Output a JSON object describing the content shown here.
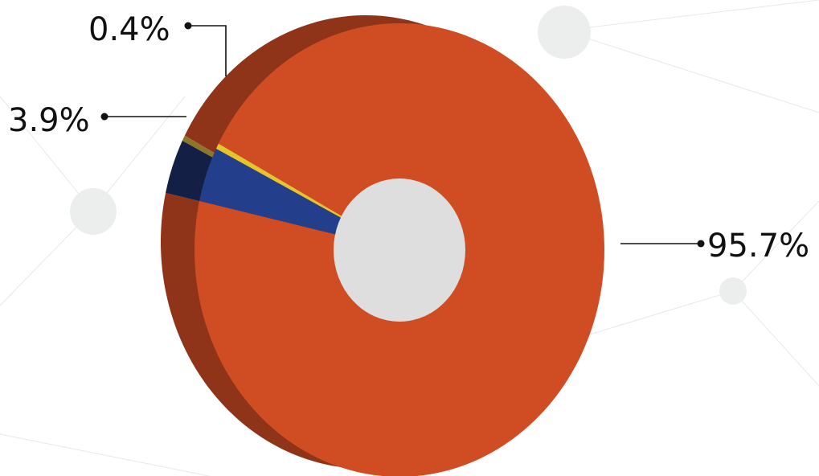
{
  "chart_data": {
    "type": "pie",
    "style": "3d-donut",
    "title": "",
    "slices": [
      {
        "label": "95.7%",
        "value": 95.7,
        "color": "#d04d24",
        "side_color": "#8f3319"
      },
      {
        "label": "3.9%",
        "value": 3.9,
        "color": "#233f8c",
        "side_color": "#141f46"
      },
      {
        "label": "0.4%",
        "value": 0.4,
        "color": "#e6c52c",
        "side_color": "#8c7629"
      }
    ],
    "hole_color": "#dedede",
    "legend": "none"
  }
}
